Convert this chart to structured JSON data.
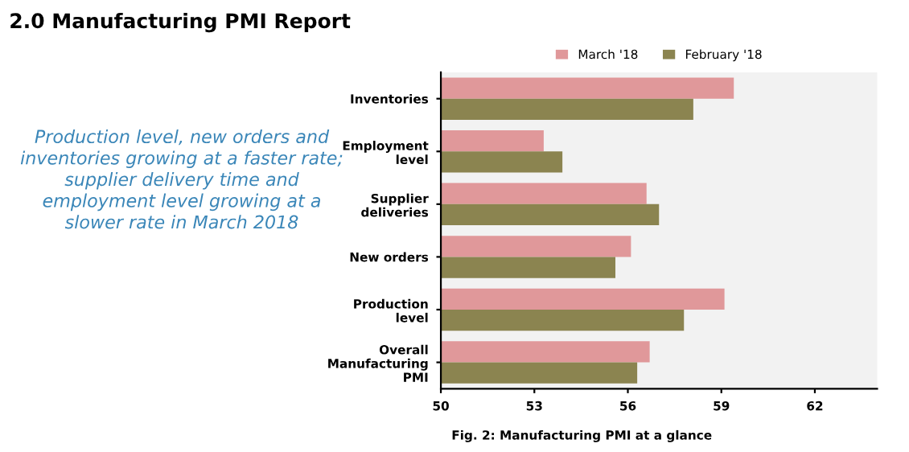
{
  "chart_data": {
    "type": "bar",
    "orientation": "horizontal",
    "title": "2.0 Manufacturing PMI Report",
    "annotations": [
      "Production level, new orders and\ninventories growing at a faster rate;\nsupplier delivery time and\nemployment level growing at a\nslower rate in March 2018",
      "Fig. 2: Manufacturing PMI at a glance"
    ],
    "categories": [
      "Inventories",
      "Employment\nlevel",
      "Supplier\ndeliveries",
      "New orders",
      "Production\nlevel",
      "Overall\nManufacturing\nPMI"
    ],
    "series": [
      {
        "name": "March '18",
        "color": "#e0989a",
        "values": [
          59.4,
          53.3,
          56.6,
          56.1,
          59.1,
          56.7
        ]
      },
      {
        "name": "February '18",
        "color": "#8b8450",
        "values": [
          58.1,
          53.9,
          57.0,
          55.6,
          57.8,
          56.3
        ]
      }
    ],
    "xlim": [
      50,
      64
    ],
    "xticks": [
      50,
      53,
      56,
      59,
      62
    ],
    "legend": "top",
    "grid": false
  }
}
